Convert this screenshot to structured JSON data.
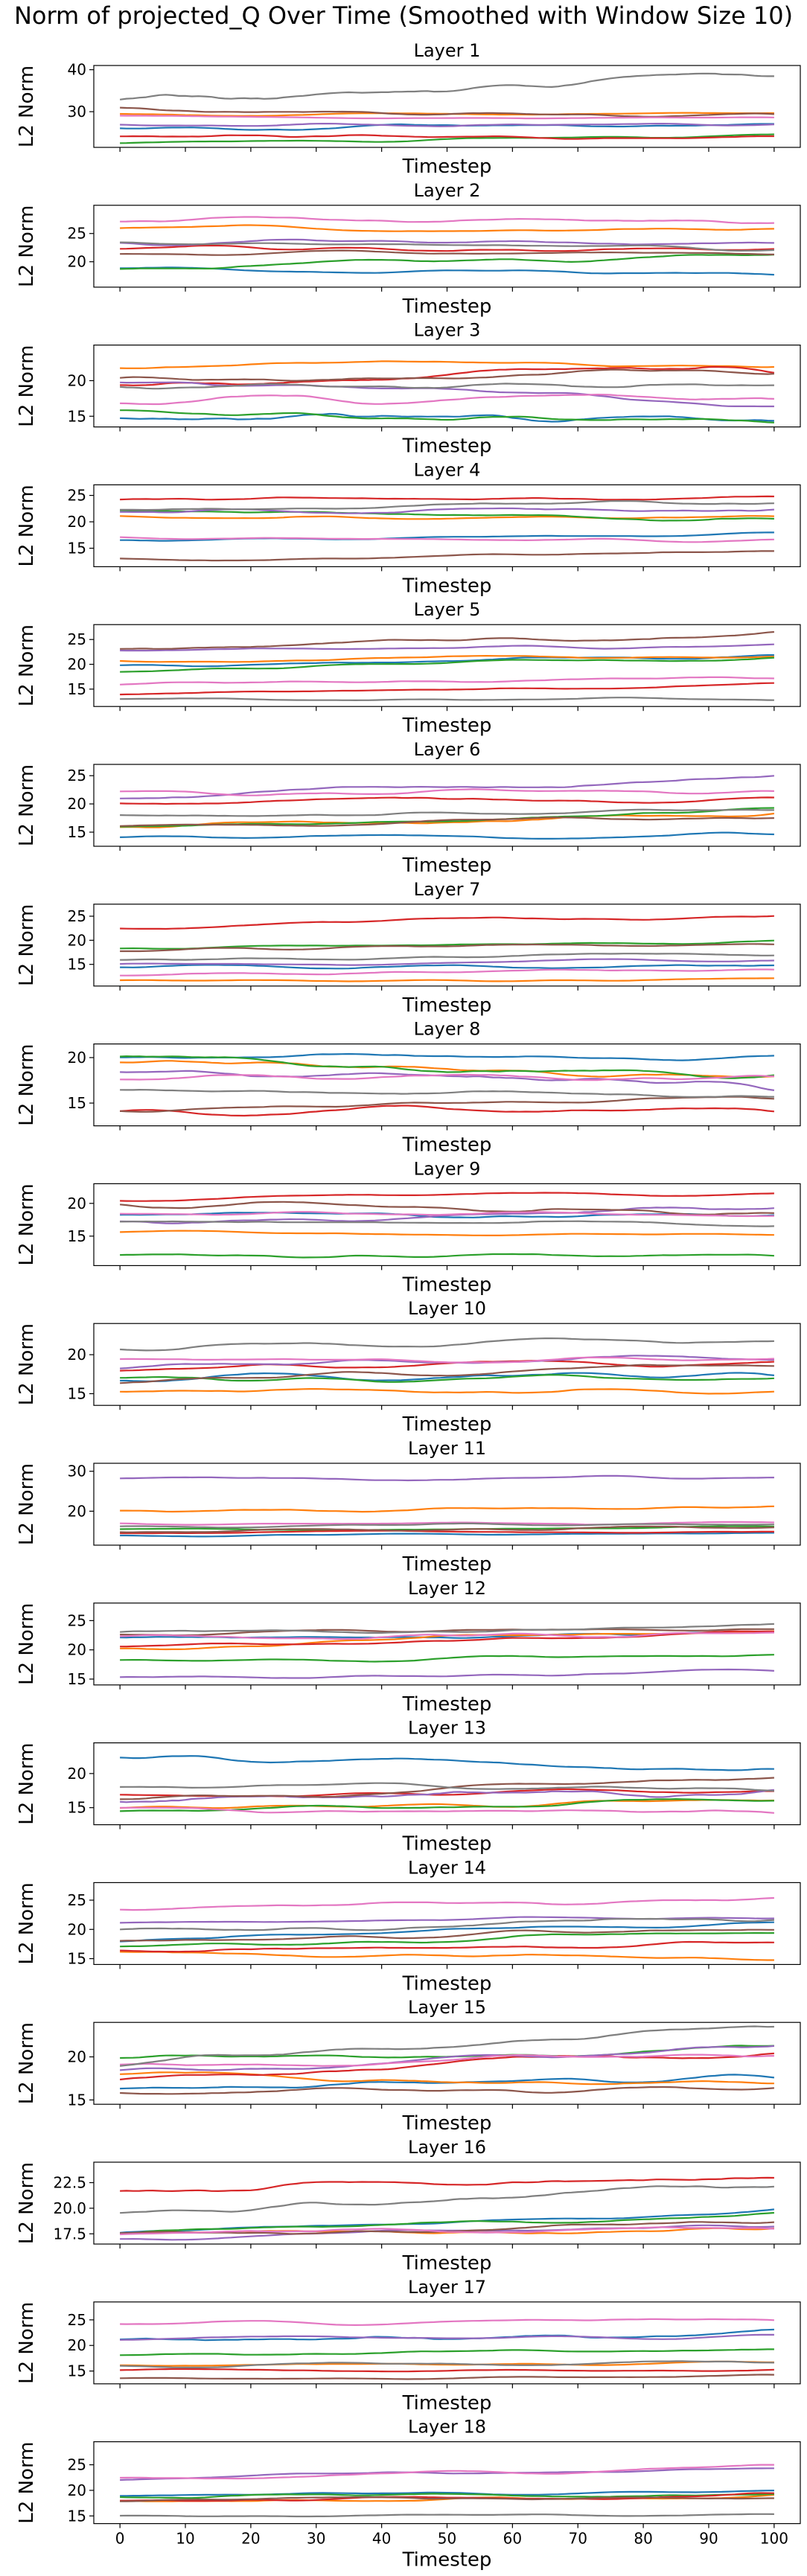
{
  "figure": {
    "suptitle": "Norm of projected_Q Over Time (Smoothed with Window Size 10)"
  },
  "chart_data": {
    "type": "line",
    "smoothing_window": 10,
    "xlabel": "Timestep",
    "ylabel": "L2 Norm",
    "xlim": [
      -4,
      104
    ],
    "x_ticks": [
      0,
      10,
      20,
      30,
      40,
      50,
      60,
      70,
      80,
      90,
      100
    ],
    "x_tick_labels_shown_on_last_panel_only": true,
    "n_points": 101,
    "series_colors": [
      "#1f77b4",
      "#ff7f0e",
      "#2ca02c",
      "#d62728",
      "#9467bd",
      "#8c564b",
      "#e377c2",
      "#7f7f7f"
    ],
    "legend": "none",
    "grid": false,
    "panels": [
      {
        "title": "Layer 1",
        "ylim": [
          21.5,
          41
        ],
        "yticks": [
          30,
          40
        ],
        "ytick_labels": [
          "30",
          "40"
        ],
        "lines": [
          [
            26,
            27,
            0.6
          ],
          [
            29.5,
            29.5,
            0.5
          ],
          [
            22.5,
            24.5,
            0.5
          ],
          [
            24,
            24,
            0.5
          ],
          [
            27,
            27,
            0.5
          ],
          [
            31,
            29,
            0.8
          ],
          [
            29,
            28.5,
            0.4
          ],
          [
            32,
            39.5,
            1.5
          ]
        ]
      },
      {
        "title": "Layer 2",
        "ylim": [
          15.5,
          30
        ],
        "yticks": [
          20,
          25
        ],
        "ytick_labels": [
          "20",
          "25"
        ],
        "lines": [
          [
            19,
            18,
            0.6
          ],
          [
            26,
            26,
            0.6
          ],
          [
            19,
            21,
            0.6
          ],
          [
            22.5,
            22.5,
            0.6
          ],
          [
            23.5,
            23.5,
            0.6
          ],
          [
            21.5,
            21.5,
            0.5
          ],
          [
            27.5,
            26.5,
            0.7
          ],
          [
            23.5,
            22.5,
            0.6
          ]
        ]
      },
      {
        "title": "Layer 3",
        "ylim": [
          13.5,
          25
        ],
        "yticks": [
          15,
          20
        ],
        "ytick_labels": [
          "15",
          "20"
        ],
        "lines": [
          [
            15,
            14.5,
            0.5
          ],
          [
            22,
            22.5,
            0.6
          ],
          [
            15.5,
            14.5,
            0.5
          ],
          [
            19.5,
            21.5,
            0.9
          ],
          [
            20,
            17,
            0.8
          ],
          [
            20,
            21,
            0.8
          ],
          [
            17,
            18,
            0.7
          ],
          [
            19.5,
            19,
            0.6
          ]
        ]
      },
      {
        "title": "Layer 4",
        "ylim": [
          11.5,
          27
        ],
        "yticks": [
          15,
          20,
          25
        ],
        "ytick_labels": [
          "15",
          "20",
          "25"
        ],
        "lines": [
          [
            16.5,
            17.5,
            0.5
          ],
          [
            21,
            20.5,
            0.6
          ],
          [
            22,
            20,
            0.6
          ],
          [
            24,
            24.5,
            0.5
          ],
          [
            21.5,
            22.5,
            0.7
          ],
          [
            13,
            14,
            0.5
          ],
          [
            17,
            16.5,
            0.4
          ],
          [
            22,
            23.5,
            0.8
          ]
        ]
      },
      {
        "title": "Layer 5",
        "ylim": [
          11.5,
          28
        ],
        "yticks": [
          15,
          20,
          25
        ],
        "ytick_labels": [
          "15",
          "20",
          "25"
        ],
        "lines": [
          [
            20,
            21.5,
            0.6
          ],
          [
            21,
            21.5,
            0.6
          ],
          [
            18.5,
            21.5,
            0.6
          ],
          [
            14,
            16,
            0.4
          ],
          [
            23,
            24,
            0.6
          ],
          [
            23,
            26.5,
            0.8
          ],
          [
            16,
            17,
            0.5
          ],
          [
            13,
            13,
            0.3
          ]
        ]
      },
      {
        "title": "Layer 6",
        "ylim": [
          12.5,
          27
        ],
        "yticks": [
          15,
          20,
          25
        ],
        "ytick_labels": [
          "15",
          "20",
          "25"
        ],
        "lines": [
          [
            14,
            14.5,
            0.5
          ],
          [
            16,
            18.5,
            0.6
          ],
          [
            16,
            19,
            0.6
          ],
          [
            20,
            21,
            0.7
          ],
          [
            21,
            24.5,
            0.8
          ],
          [
            16,
            17.5,
            0.6
          ],
          [
            22,
            22,
            0.6
          ],
          [
            18,
            18.5,
            0.6
          ]
        ]
      },
      {
        "title": "Layer 7",
        "ylim": [
          10.5,
          27.5
        ],
        "yticks": [
          15,
          20,
          25
        ],
        "ytick_labels": [
          "15",
          "20",
          "25"
        ],
        "lines": [
          [
            14.5,
            14.5,
            0.4
          ],
          [
            11.5,
            12,
            0.3
          ],
          [
            18,
            20,
            0.5
          ],
          [
            23,
            25.5,
            0.8
          ],
          [
            15,
            16,
            0.5
          ],
          [
            18,
            19,
            0.5
          ],
          [
            13,
            14,
            0.4
          ],
          [
            16,
            17,
            0.5
          ]
        ]
      },
      {
        "title": "Layer 8",
        "ylim": [
          12.5,
          21.5
        ],
        "yticks": [
          15,
          20
        ],
        "ytick_labels": [
          "15",
          "20"
        ],
        "lines": [
          [
            20,
            20,
            0.4
          ],
          [
            19.5,
            18,
            0.5
          ],
          [
            20,
            18,
            0.6
          ],
          [
            14,
            14.5,
            0.5
          ],
          [
            18.5,
            17,
            0.6
          ],
          [
            14.5,
            15.5,
            0.5
          ],
          [
            17.5,
            18,
            0.5
          ],
          [
            16.5,
            16,
            0.4
          ]
        ]
      },
      {
        "title": "Layer 9",
        "ylim": [
          10.5,
          23
        ],
        "yticks": [
          15,
          20
        ],
        "ytick_labels": [
          "15",
          "20"
        ],
        "lines": [
          [
            18,
            18.5,
            0.5
          ],
          [
            15.5,
            15.5,
            0.4
          ],
          [
            12,
            12.5,
            0.5
          ],
          [
            20.5,
            21.5,
            0.5
          ],
          [
            17,
            19.5,
            0.6
          ],
          [
            20,
            18.5,
            0.6
          ],
          [
            18.5,
            18,
            0.5
          ],
          [
            17,
            17,
            0.5
          ]
        ]
      },
      {
        "title": "Layer 10",
        "ylim": [
          13.5,
          24
        ],
        "yticks": [
          15,
          20
        ],
        "ytick_labels": [
          "15",
          "20"
        ],
        "lines": [
          [
            17,
            17.5,
            0.5
          ],
          [
            15.5,
            15.5,
            0.5
          ],
          [
            17,
            17,
            0.5
          ],
          [
            18,
            19,
            0.6
          ],
          [
            18.5,
            19.5,
            0.6
          ],
          [
            16.5,
            18.5,
            0.6
          ],
          [
            19.5,
            19.5,
            0.5
          ],
          [
            21,
            22,
            0.5
          ]
        ]
      },
      {
        "title": "Layer 11",
        "ylim": [
          11.5,
          32
        ],
        "yticks": [
          20,
          30
        ],
        "ytick_labels": [
          "20",
          "30"
        ],
        "lines": [
          [
            14,
            14.5,
            0.4
          ],
          [
            20,
            21,
            0.5
          ],
          [
            15.5,
            16,
            0.4
          ],
          [
            14.5,
            15,
            0.4
          ],
          [
            28,
            28.5,
            0.5
          ],
          [
            15,
            16,
            0.4
          ],
          [
            17,
            17,
            0.4
          ],
          [
            16,
            17,
            0.4
          ]
        ]
      },
      {
        "title": "Layer 12",
        "ylim": [
          14,
          28
        ],
        "yticks": [
          15,
          20,
          25
        ],
        "ytick_labels": [
          "15",
          "20",
          "25"
        ],
        "lines": [
          [
            22,
            23,
            0.5
          ],
          [
            20,
            23.5,
            0.7
          ],
          [
            18,
            19,
            0.4
          ],
          [
            20.5,
            22.5,
            0.8
          ],
          [
            15,
            16.5,
            0.4
          ],
          [
            22.5,
            23.5,
            0.6
          ],
          [
            22,
            22.5,
            0.5
          ],
          [
            23,
            24,
            0.5
          ]
        ]
      },
      {
        "title": "Layer 13",
        "ylim": [
          12.5,
          24.5
        ],
        "yticks": [
          15,
          20
        ],
        "ytick_labels": [
          "15",
          "20"
        ],
        "lines": [
          [
            22.5,
            21,
            0.7
          ],
          [
            15,
            16,
            0.5
          ],
          [
            14.5,
            16,
            0.5
          ],
          [
            17,
            17,
            0.7
          ],
          [
            16,
            17.5,
            0.7
          ],
          [
            16.5,
            19,
            0.7
          ],
          [
            15,
            14,
            0.5
          ],
          [
            18,
            18,
            0.6
          ]
        ]
      },
      {
        "title": "Layer 14",
        "ylim": [
          14,
          28
        ],
        "yticks": [
          15,
          20,
          25
        ],
        "ytick_labels": [
          "15",
          "20",
          "25"
        ],
        "lines": [
          [
            18,
            21.5,
            0.6
          ],
          [
            16,
            15,
            0.4
          ],
          [
            17,
            19.5,
            0.5
          ],
          [
            16.5,
            17.5,
            0.5
          ],
          [
            21,
            22,
            0.5
          ],
          [
            18,
            20,
            0.6
          ],
          [
            23.5,
            25,
            0.5
          ],
          [
            19.5,
            22,
            0.6
          ]
        ]
      },
      {
        "title": "Layer 15",
        "ylim": [
          14.5,
          24
        ],
        "yticks": [
          15,
          20
        ],
        "ytick_labels": [
          "15",
          "20"
        ],
        "lines": [
          [
            16.5,
            17.5,
            0.5
          ],
          [
            18,
            17,
            0.5
          ],
          [
            20,
            21,
            0.6
          ],
          [
            17.5,
            21,
            0.8
          ],
          [
            18.5,
            21,
            0.6
          ],
          [
            16,
            16.5,
            0.5
          ],
          [
            19,
            20,
            0.6
          ],
          [
            19,
            23,
            0.8
          ]
        ]
      },
      {
        "title": "Layer 16",
        "ylim": [
          16.5,
          24.5
        ],
        "yticks": [
          17.5,
          20,
          22.5
        ],
        "ytick_labels": [
          "17.5",
          "20.0",
          "22.5"
        ],
        "lines": [
          [
            17.5,
            20,
            0.4
          ],
          [
            17.5,
            18,
            0.3
          ],
          [
            17.5,
            19.5,
            0.3
          ],
          [
            21.5,
            23,
            0.6
          ],
          [
            17,
            18.5,
            0.3
          ],
          [
            17.5,
            18.5,
            0.3
          ],
          [
            17.5,
            18,
            0.3
          ],
          [
            19.5,
            22,
            0.6
          ]
        ]
      },
      {
        "title": "Layer 17",
        "ylim": [
          12.5,
          28.5
        ],
        "yticks": [
          15,
          20,
          25
        ],
        "ytick_labels": [
          "15",
          "20",
          "25"
        ],
        "lines": [
          [
            21,
            22.5,
            0.6
          ],
          [
            16,
            16.5,
            0.4
          ],
          [
            18,
            19,
            0.5
          ],
          [
            15,
            15,
            0.4
          ],
          [
            21,
            22,
            0.6
          ],
          [
            13.5,
            14,
            0.3
          ],
          [
            24,
            25,
            0.6
          ],
          [
            16,
            17,
            0.5
          ]
        ]
      },
      {
        "title": "Layer 18",
        "ylim": [
          13.5,
          29.5
        ],
        "yticks": [
          15,
          20,
          25
        ],
        "ytick_labels": [
          "15",
          "20",
          "25"
        ],
        "lines": [
          [
            19,
            20,
            0.5
          ],
          [
            18,
            19,
            0.5
          ],
          [
            19,
            19,
            0.5
          ],
          [
            18,
            19,
            0.5
          ],
          [
            22,
            24.5,
            0.6
          ],
          [
            18,
            18.5,
            0.5
          ],
          [
            22.5,
            24.5,
            0.6
          ],
          [
            15,
            15.5,
            0.4
          ]
        ]
      }
    ]
  }
}
